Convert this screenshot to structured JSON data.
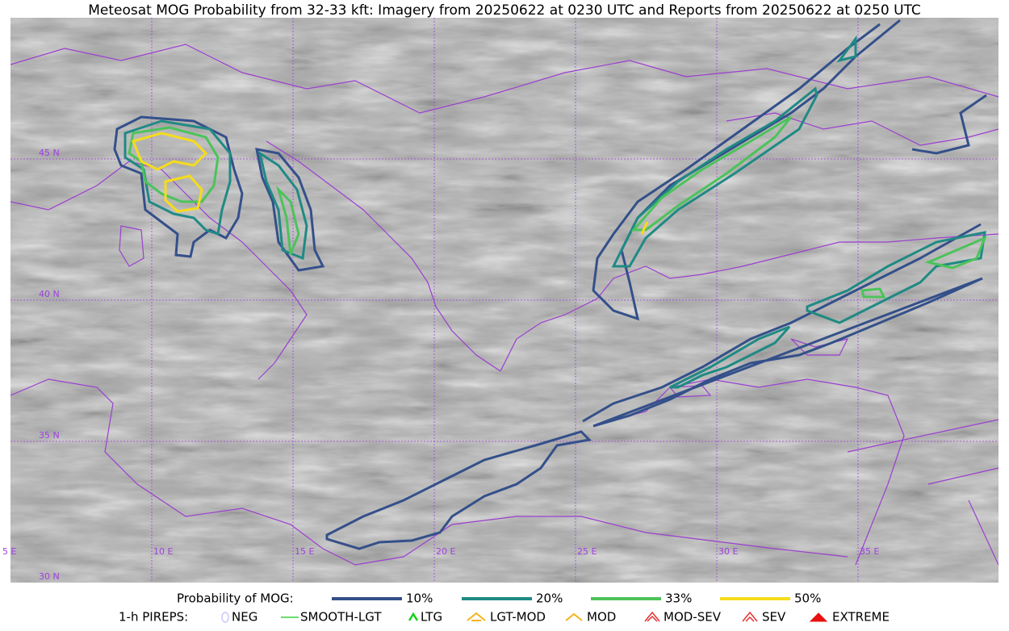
{
  "title": "Meteosat MOG Probability from 32-33 kft: Imagery from 20250622 at 0230 UTC and Reports from 20250622 at 0250 UTC",
  "map": {
    "lat_labels": [
      "45 N",
      "40 N",
      "35 N",
      "30 N"
    ],
    "lon_labels": [
      "5 E",
      "10 E",
      "15 E",
      "20 E",
      "25 E",
      "30 E",
      "35 E"
    ]
  },
  "legend": {
    "probability": {
      "label": "Probability of MOG:",
      "items": [
        {
          "label": "10%",
          "color": "#34508a"
        },
        {
          "label": "20%",
          "color": "#1f8a84"
        },
        {
          "label": "33%",
          "color": "#4cc35a"
        },
        {
          "label": "50%",
          "color": "#f5dc1c"
        }
      ]
    },
    "pireps": {
      "label": "1-h PIREPS:",
      "items": [
        {
          "label": "NEG",
          "color": "#c8c8ff"
        },
        {
          "label": "SMOOTH-LGT",
          "color": "#3cd23c"
        },
        {
          "label": "LTG",
          "color": "#18d018"
        },
        {
          "label": "LGT-MOD",
          "color": "#f5b41c"
        },
        {
          "label": "MOD",
          "color": "#f5b41c"
        },
        {
          "label": "MOD-SEV",
          "color": "#e83030"
        },
        {
          "label": "SEV",
          "color": "#e83030"
        },
        {
          "label": "EXTREME",
          "color": "#e81010"
        }
      ]
    }
  }
}
